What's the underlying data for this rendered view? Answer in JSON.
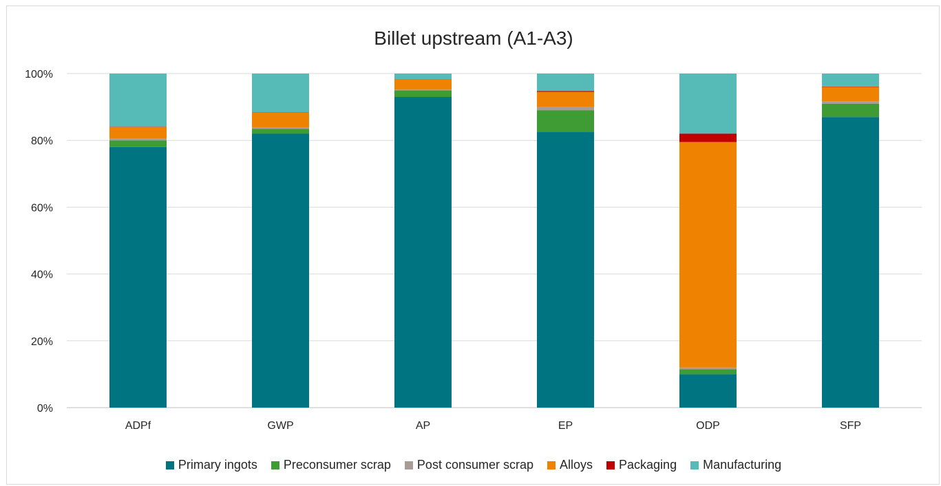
{
  "chart_data": {
    "type": "bar",
    "stacked": true,
    "title": "Billet upstream (A1-A3)",
    "xlabel": "",
    "ylabel": "",
    "categories": [
      "ADPf",
      "GWP",
      "AP",
      "EP",
      "ODP",
      "SFP"
    ],
    "ylim": [
      0,
      100
    ],
    "yticks": [
      "0%",
      "20%",
      "40%",
      "60%",
      "80%",
      "100%"
    ],
    "grid": true,
    "legend_position": "bottom",
    "series": [
      {
        "name": "Primary ingots",
        "color": "#007480",
        "values": [
          78,
          82,
          93,
          82.5,
          10,
          87
        ]
      },
      {
        "name": "Preconsumer scrap",
        "color": "#3f9c35",
        "values": [
          2,
          1.5,
          2,
          6.5,
          1.5,
          4
        ]
      },
      {
        "name": "Post consumer scrap",
        "color": "#a79d96",
        "values": [
          0.5,
          0.3,
          0.2,
          1,
          0.5,
          0.7
        ]
      },
      {
        "name": "Alloys",
        "color": "#ef8200",
        "values": [
          3.5,
          4.5,
          3,
          4.5,
          67.5,
          4.3
        ]
      },
      {
        "name": "Packaging",
        "color": "#c00000",
        "values": [
          0.1,
          0.1,
          0.1,
          0.3,
          2.5,
          0.1
        ]
      },
      {
        "name": "Manufacturing",
        "color": "#56bbb6",
        "values": [
          15.9,
          11.6,
          1.7,
          5.2,
          18,
          3.9
        ]
      }
    ]
  }
}
